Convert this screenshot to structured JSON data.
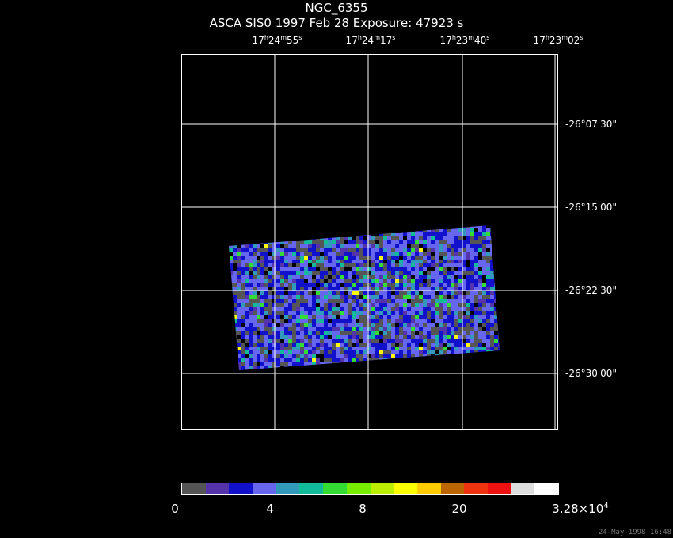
{
  "header": {
    "object": "NGC_6355",
    "subtitle": "ASCA SIS0   1997 Feb 28    Exposure: 47923 s"
  },
  "ra_ticks": [
    {
      "h": "17",
      "m": "24",
      "s": "55"
    },
    {
      "h": "17",
      "m": "24",
      "s": "17"
    },
    {
      "h": "17",
      "m": "23",
      "s": "40"
    },
    {
      "h": "17",
      "m": "23",
      "s": "02"
    }
  ],
  "dec_ticks": [
    "-26°07'30\"",
    "-26°15'00\"",
    "-26°22'30\"",
    "-26°30'00\""
  ],
  "colorbar": {
    "colors": [
      "#555555",
      "#5533aa",
      "#1111cc",
      "#6666ee",
      "#3399bb",
      "#11bb99",
      "#33dd33",
      "#77ee00",
      "#bbee00",
      "#ffff00",
      "#ffcc00",
      "#bb6600",
      "#ee3311",
      "#ee1111",
      "#dddddd",
      "#ffffff"
    ],
    "labels": [
      "0",
      "4",
      "8",
      "20"
    ],
    "max_label_base": "3.28×10",
    "max_label_exp": "4"
  },
  "timestamp": "24-May-1998 16:48"
}
